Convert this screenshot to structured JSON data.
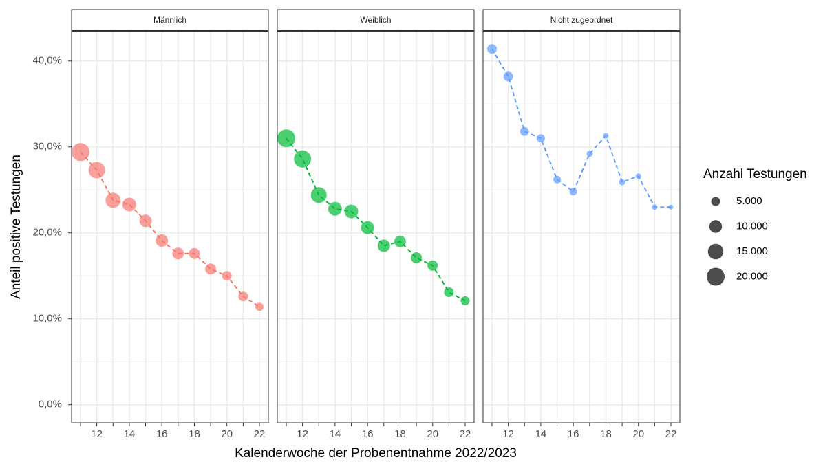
{
  "chart_data": {
    "type": "scatter",
    "x_label": "Kalenderwoche der Probenentnahme 2022/2023",
    "y_label": "Anteil positive Testungen",
    "size_legend_title": "Anzahl Testungen",
    "size_legend": [
      {
        "value": 5000,
        "label": "5.000"
      },
      {
        "value": 10000,
        "label": "10.000"
      },
      {
        "value": 15000,
        "label": "15.000"
      },
      {
        "value": 20000,
        "label": "20.000"
      }
    ],
    "x": [
      11,
      12,
      13,
      14,
      15,
      16,
      17,
      18,
      19,
      20,
      21,
      22
    ],
    "xlim": [
      10.45,
      22.55
    ],
    "xticks": [
      12,
      14,
      16,
      18,
      20,
      22
    ],
    "xminor": [
      11,
      13,
      15,
      17,
      19,
      21
    ],
    "ylim": [
      -2.1,
      43.5
    ],
    "yticks": [
      {
        "value": 0,
        "label": "0,0%"
      },
      {
        "value": 10,
        "label": "10,0%"
      },
      {
        "value": 20,
        "label": "20,0%"
      },
      {
        "value": 30,
        "label": "30,0%"
      },
      {
        "value": 40,
        "label": "40,0%"
      }
    ],
    "yminor": [
      5,
      15,
      25,
      35
    ],
    "grid": true,
    "series": [
      {
        "name": "Männlich",
        "color": "#F8766D",
        "values": [
          29.4,
          27.3,
          23.8,
          23.3,
          21.4,
          19.1,
          17.6,
          17.6,
          15.8,
          15.0,
          12.6,
          11.4
        ],
        "sizes": [
          20000,
          17000,
          14300,
          11800,
          9600,
          9600,
          8500,
          7600,
          7600,
          5800,
          5800,
          4300
        ]
      },
      {
        "name": "Weiblich",
        "color": "#00BA38",
        "values": [
          31.0,
          28.6,
          24.4,
          22.8,
          22.5,
          20.6,
          18.5,
          19.0,
          17.1,
          16.2,
          13.1,
          12.1
        ],
        "sizes": [
          20000,
          18500,
          15600,
          11800,
          11800,
          10700,
          9600,
          8500,
          7600,
          6700,
          5800,
          5000
        ]
      },
      {
        "name": "Nicht zugeordnet",
        "color": "#619CFF",
        "values": [
          41.4,
          38.2,
          31.8,
          31.0,
          26.2,
          24.8,
          29.2,
          31.3,
          25.9,
          26.6,
          23.0,
          23.0
        ],
        "sizes": [
          5800,
          5800,
          5000,
          4300,
          3600,
          3600,
          2400,
          1900,
          2400,
          1900,
          1900,
          1450
        ]
      }
    ]
  }
}
